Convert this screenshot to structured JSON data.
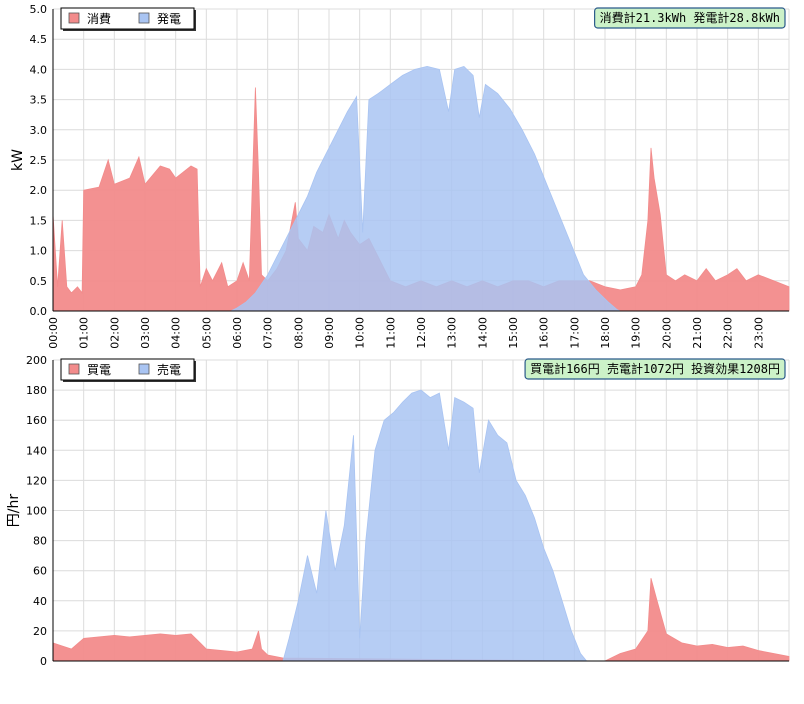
{
  "chart_data": [
    {
      "type": "area",
      "ylabel": "kW",
      "ylim": [
        0,
        5.0
      ],
      "y_ticks": [
        "0.0",
        "0.5",
        "1.0",
        "1.5",
        "2.0",
        "2.5",
        "3.0",
        "3.5",
        "4.0",
        "4.5",
        "5.0"
      ],
      "x_ticks": [
        "00:00",
        "01:00",
        "02:00",
        "03:00",
        "04:00",
        "05:00",
        "06:00",
        "07:00",
        "08:00",
        "09:00",
        "10:00",
        "11:00",
        "12:00",
        "13:00",
        "14:00",
        "15:00",
        "16:00",
        "17:00",
        "18:00",
        "19:00",
        "20:00",
        "21:00",
        "22:00",
        "23:00"
      ],
      "x_range_hours": [
        0,
        24
      ],
      "grid": true,
      "legend_position": "top-left",
      "summary": "消費計21.3kWh  発電計28.8kWh",
      "series": [
        {
          "name": "消費",
          "color": "#f28b8b",
          "points": [
            [
              0,
              1.6
            ],
            [
              0.15,
              0.4
            ],
            [
              0.3,
              1.5
            ],
            [
              0.45,
              0.4
            ],
            [
              0.6,
              0.3
            ],
            [
              0.8,
              0.4
            ],
            [
              0.95,
              0.3
            ],
            [
              1.0,
              2.0
            ],
            [
              1.5,
              2.05
            ],
            [
              1.8,
              2.5
            ],
            [
              2.0,
              2.1
            ],
            [
              2.5,
              2.2
            ],
            [
              2.8,
              2.55
            ],
            [
              3.0,
              2.1
            ],
            [
              3.5,
              2.4
            ],
            [
              3.8,
              2.35
            ],
            [
              4.0,
              2.2
            ],
            [
              4.5,
              2.4
            ],
            [
              4.7,
              2.35
            ],
            [
              4.8,
              0.4
            ],
            [
              5.0,
              0.7
            ],
            [
              5.2,
              0.5
            ],
            [
              5.5,
              0.8
            ],
            [
              5.7,
              0.4
            ],
            [
              6.0,
              0.5
            ],
            [
              6.2,
              0.8
            ],
            [
              6.4,
              0.5
            ],
            [
              6.6,
              3.7
            ],
            [
              6.7,
              2.3
            ],
            [
              6.8,
              0.6
            ],
            [
              7.0,
              0.5
            ],
            [
              7.3,
              0.7
            ],
            [
              7.6,
              1.0
            ],
            [
              7.9,
              1.8
            ],
            [
              8.0,
              1.2
            ],
            [
              8.3,
              1.0
            ],
            [
              8.5,
              1.4
            ],
            [
              8.8,
              1.3
            ],
            [
              9.0,
              1.6
            ],
            [
              9.3,
              1.2
            ],
            [
              9.5,
              1.5
            ],
            [
              9.7,
              1.3
            ],
            [
              10.0,
              1.1
            ],
            [
              10.3,
              1.2
            ],
            [
              10.6,
              0.9
            ],
            [
              11.0,
              0.5
            ],
            [
              11.5,
              0.4
            ],
            [
              12.0,
              0.5
            ],
            [
              12.5,
              0.4
            ],
            [
              13.0,
              0.5
            ],
            [
              13.5,
              0.4
            ],
            [
              14.0,
              0.5
            ],
            [
              14.5,
              0.4
            ],
            [
              15.0,
              0.5
            ],
            [
              15.5,
              0.5
            ],
            [
              16.0,
              0.4
            ],
            [
              16.5,
              0.5
            ],
            [
              17.0,
              0.5
            ],
            [
              17.5,
              0.5
            ],
            [
              18.0,
              0.4
            ],
            [
              18.5,
              0.35
            ],
            [
              19.0,
              0.4
            ],
            [
              19.2,
              0.6
            ],
            [
              19.4,
              1.5
            ],
            [
              19.5,
              2.7
            ],
            [
              19.6,
              2.2
            ],
            [
              19.8,
              1.6
            ],
            [
              20.0,
              0.6
            ],
            [
              20.3,
              0.5
            ],
            [
              20.6,
              0.6
            ],
            [
              21.0,
              0.5
            ],
            [
              21.3,
              0.7
            ],
            [
              21.6,
              0.5
            ],
            [
              22.0,
              0.6
            ],
            [
              22.3,
              0.7
            ],
            [
              22.6,
              0.5
            ],
            [
              23.0,
              0.6
            ],
            [
              23.5,
              0.5
            ],
            [
              24.0,
              0.4
            ]
          ]
        },
        {
          "name": "発電",
          "color": "#a9c4f2",
          "points": [
            [
              5.8,
              0
            ],
            [
              6.0,
              0.05
            ],
            [
              6.3,
              0.15
            ],
            [
              6.6,
              0.3
            ],
            [
              7.0,
              0.6
            ],
            [
              7.3,
              0.9
            ],
            [
              7.6,
              1.2
            ],
            [
              8.0,
              1.6
            ],
            [
              8.3,
              1.9
            ],
            [
              8.6,
              2.3
            ],
            [
              9.0,
              2.7
            ],
            [
              9.3,
              3.0
            ],
            [
              9.6,
              3.3
            ],
            [
              9.9,
              3.55
            ],
            [
              10.1,
              1.3
            ],
            [
              10.3,
              3.5
            ],
            [
              10.6,
              3.6
            ],
            [
              11.0,
              3.75
            ],
            [
              11.4,
              3.9
            ],
            [
              11.8,
              4.0
            ],
            [
              12.2,
              4.05
            ],
            [
              12.6,
              4.0
            ],
            [
              12.9,
              3.3
            ],
            [
              13.1,
              4.0
            ],
            [
              13.4,
              4.05
            ],
            [
              13.7,
              3.9
            ],
            [
              13.9,
              3.2
            ],
            [
              14.1,
              3.75
            ],
            [
              14.5,
              3.6
            ],
            [
              14.9,
              3.35
            ],
            [
              15.3,
              3.0
            ],
            [
              15.7,
              2.6
            ],
            [
              16.1,
              2.1
            ],
            [
              16.5,
              1.6
            ],
            [
              16.9,
              1.1
            ],
            [
              17.3,
              0.6
            ],
            [
              17.7,
              0.35
            ],
            [
              18.1,
              0.15
            ],
            [
              18.4,
              0.02
            ],
            [
              18.5,
              0
            ]
          ]
        }
      ]
    },
    {
      "type": "area",
      "ylabel": "円/hr",
      "ylim": [
        0,
        200
      ],
      "y_ticks": [
        "0",
        "20",
        "40",
        "60",
        "80",
        "100",
        "120",
        "140",
        "160",
        "180",
        "200"
      ],
      "x_range_hours": [
        0,
        24
      ],
      "grid": true,
      "legend_position": "top-left",
      "summary": "買電計166円  売電計1072円  投資効果1208円",
      "series": [
        {
          "name": "買電",
          "color": "#f28b8b",
          "points": [
            [
              0,
              12
            ],
            [
              0.3,
              10
            ],
            [
              0.6,
              8
            ],
            [
              1.0,
              15
            ],
            [
              1.5,
              16
            ],
            [
              2.0,
              17
            ],
            [
              2.5,
              16
            ],
            [
              3.0,
              17
            ],
            [
              3.5,
              18
            ],
            [
              4.0,
              17
            ],
            [
              4.5,
              18
            ],
            [
              4.8,
              12
            ],
            [
              5.0,
              8
            ],
            [
              5.5,
              7
            ],
            [
              6.0,
              6
            ],
            [
              6.5,
              8
            ],
            [
              6.7,
              20
            ],
            [
              6.8,
              8
            ],
            [
              7.0,
              4
            ],
            [
              7.5,
              2
            ],
            [
              18.0,
              0
            ],
            [
              18.5,
              5
            ],
            [
              19.0,
              8
            ],
            [
              19.4,
              20
            ],
            [
              19.5,
              55
            ],
            [
              19.7,
              40
            ],
            [
              20.0,
              18
            ],
            [
              20.5,
              12
            ],
            [
              21.0,
              10
            ],
            [
              21.5,
              11
            ],
            [
              22.0,
              9
            ],
            [
              22.5,
              10
            ],
            [
              23.0,
              7
            ],
            [
              23.5,
              5
            ],
            [
              24.0,
              3
            ]
          ]
        },
        {
          "name": "売電",
          "color": "#a9c4f2",
          "points": [
            [
              7.5,
              0
            ],
            [
              7.7,
              15
            ],
            [
              8.0,
              40
            ],
            [
              8.3,
              70
            ],
            [
              8.6,
              45
            ],
            [
              8.9,
              100
            ],
            [
              9.2,
              60
            ],
            [
              9.5,
              90
            ],
            [
              9.8,
              150
            ],
            [
              10.0,
              15
            ],
            [
              10.2,
              80
            ],
            [
              10.5,
              140
            ],
            [
              10.8,
              160
            ],
            [
              11.1,
              165
            ],
            [
              11.4,
              172
            ],
            [
              11.7,
              178
            ],
            [
              12.0,
              180
            ],
            [
              12.3,
              175
            ],
            [
              12.6,
              178
            ],
            [
              12.9,
              140
            ],
            [
              13.1,
              175
            ],
            [
              13.4,
              172
            ],
            [
              13.7,
              168
            ],
            [
              13.9,
              125
            ],
            [
              14.2,
              160
            ],
            [
              14.5,
              150
            ],
            [
              14.8,
              145
            ],
            [
              15.1,
              120
            ],
            [
              15.4,
              110
            ],
            [
              15.7,
              95
            ],
            [
              16.0,
              75
            ],
            [
              16.3,
              60
            ],
            [
              16.6,
              40
            ],
            [
              16.9,
              20
            ],
            [
              17.2,
              5
            ],
            [
              17.4,
              0
            ]
          ]
        }
      ]
    }
  ]
}
